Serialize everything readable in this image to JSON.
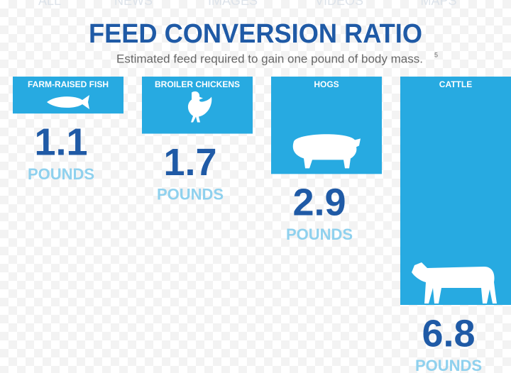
{
  "nav": [
    "ALL",
    "NEWS",
    "IMAGES",
    "VIDEOS",
    "MAPS"
  ],
  "chart_data": {
    "type": "bar",
    "orientation": "down",
    "title": "FEED CONVERSION RATIO",
    "subtitle": "Estimated feed required to gain one pound of body mass.",
    "footnote_mark": "5",
    "categories": [
      "FARM-RAISED FISH",
      "BROILER CHICKENS",
      "HOGS",
      "CATTLE"
    ],
    "values": [
      1.1,
      1.7,
      2.9,
      6.8
    ],
    "unit_label": "POUNDS",
    "color": "#27aae1"
  }
}
